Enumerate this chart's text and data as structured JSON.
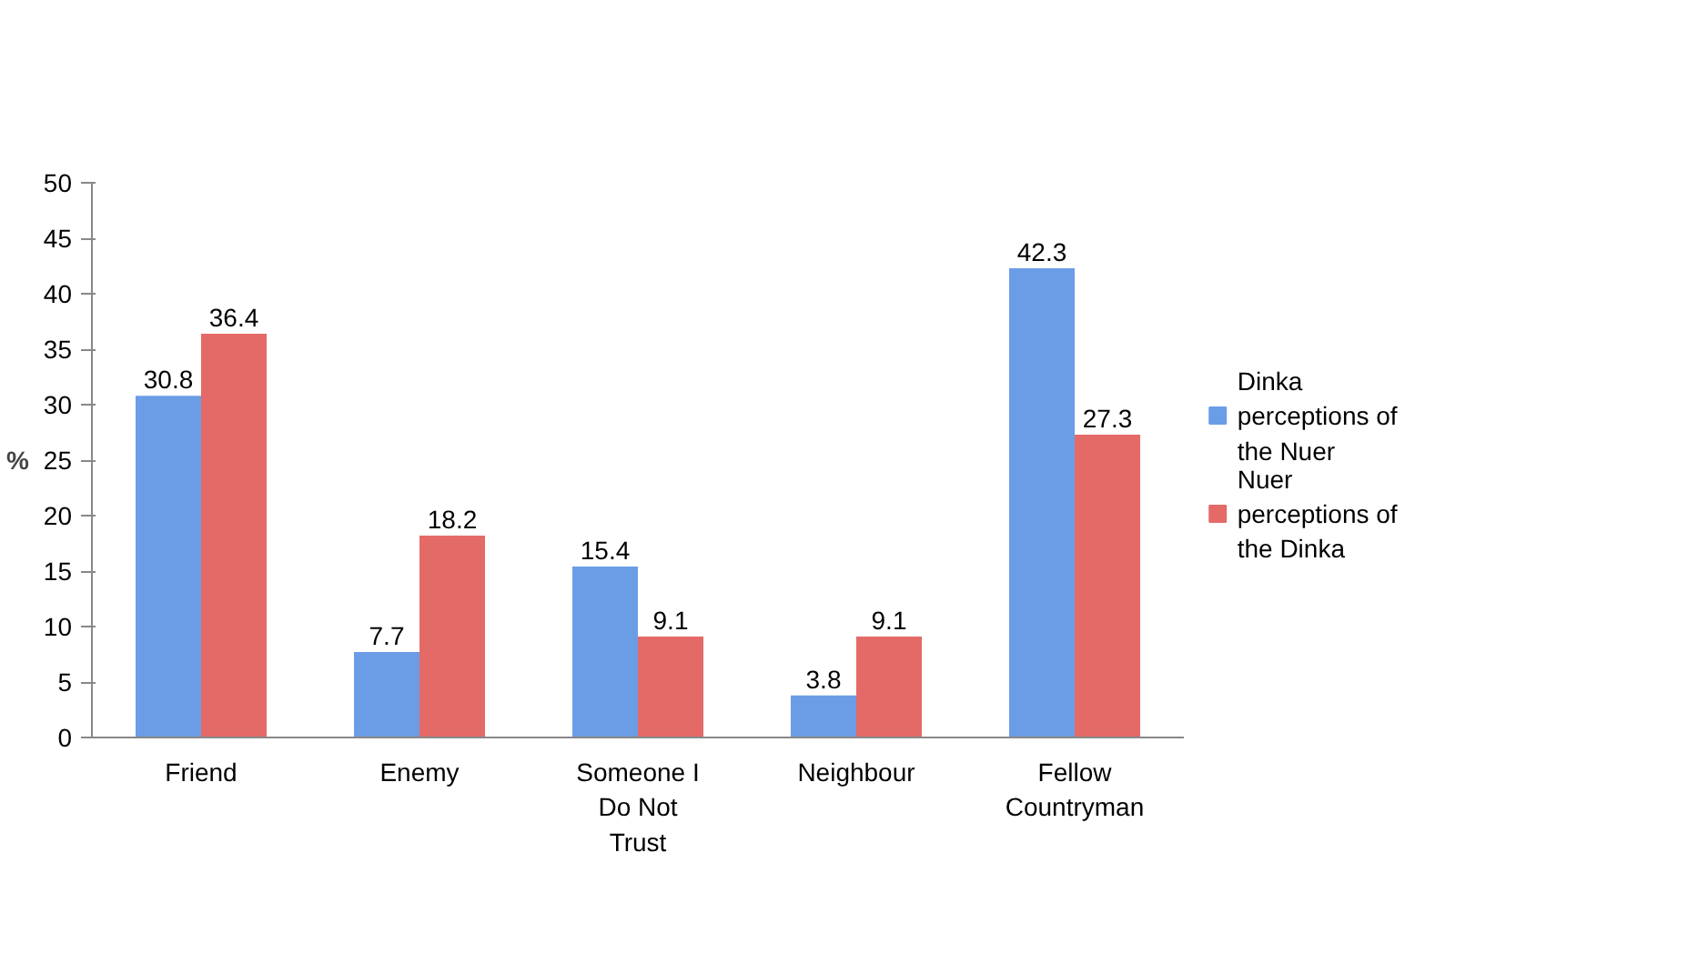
{
  "chart_data": {
    "type": "bar",
    "ylabel": "%",
    "categories": [
      "Friend",
      "Enemy",
      "Someone I Do Not Trust",
      "Neighbour",
      "Fellow Countryman"
    ],
    "series": [
      {
        "name": "Dinka perceptions of the Nuer",
        "color": "#6b9de6",
        "values": [
          30.8,
          7.7,
          15.4,
          3.8,
          42.3
        ]
      },
      {
        "name": "Nuer perceptions of the Dinka",
        "color": "#e46a68",
        "values": [
          36.4,
          18.2,
          9.1,
          9.1,
          27.3
        ]
      }
    ],
    "ylim": [
      0,
      50
    ],
    "yticks": [
      0,
      5,
      10,
      15,
      20,
      25,
      30,
      35,
      40,
      45,
      50
    ],
    "grid": false,
    "legend": "right",
    "data_labels": true
  }
}
